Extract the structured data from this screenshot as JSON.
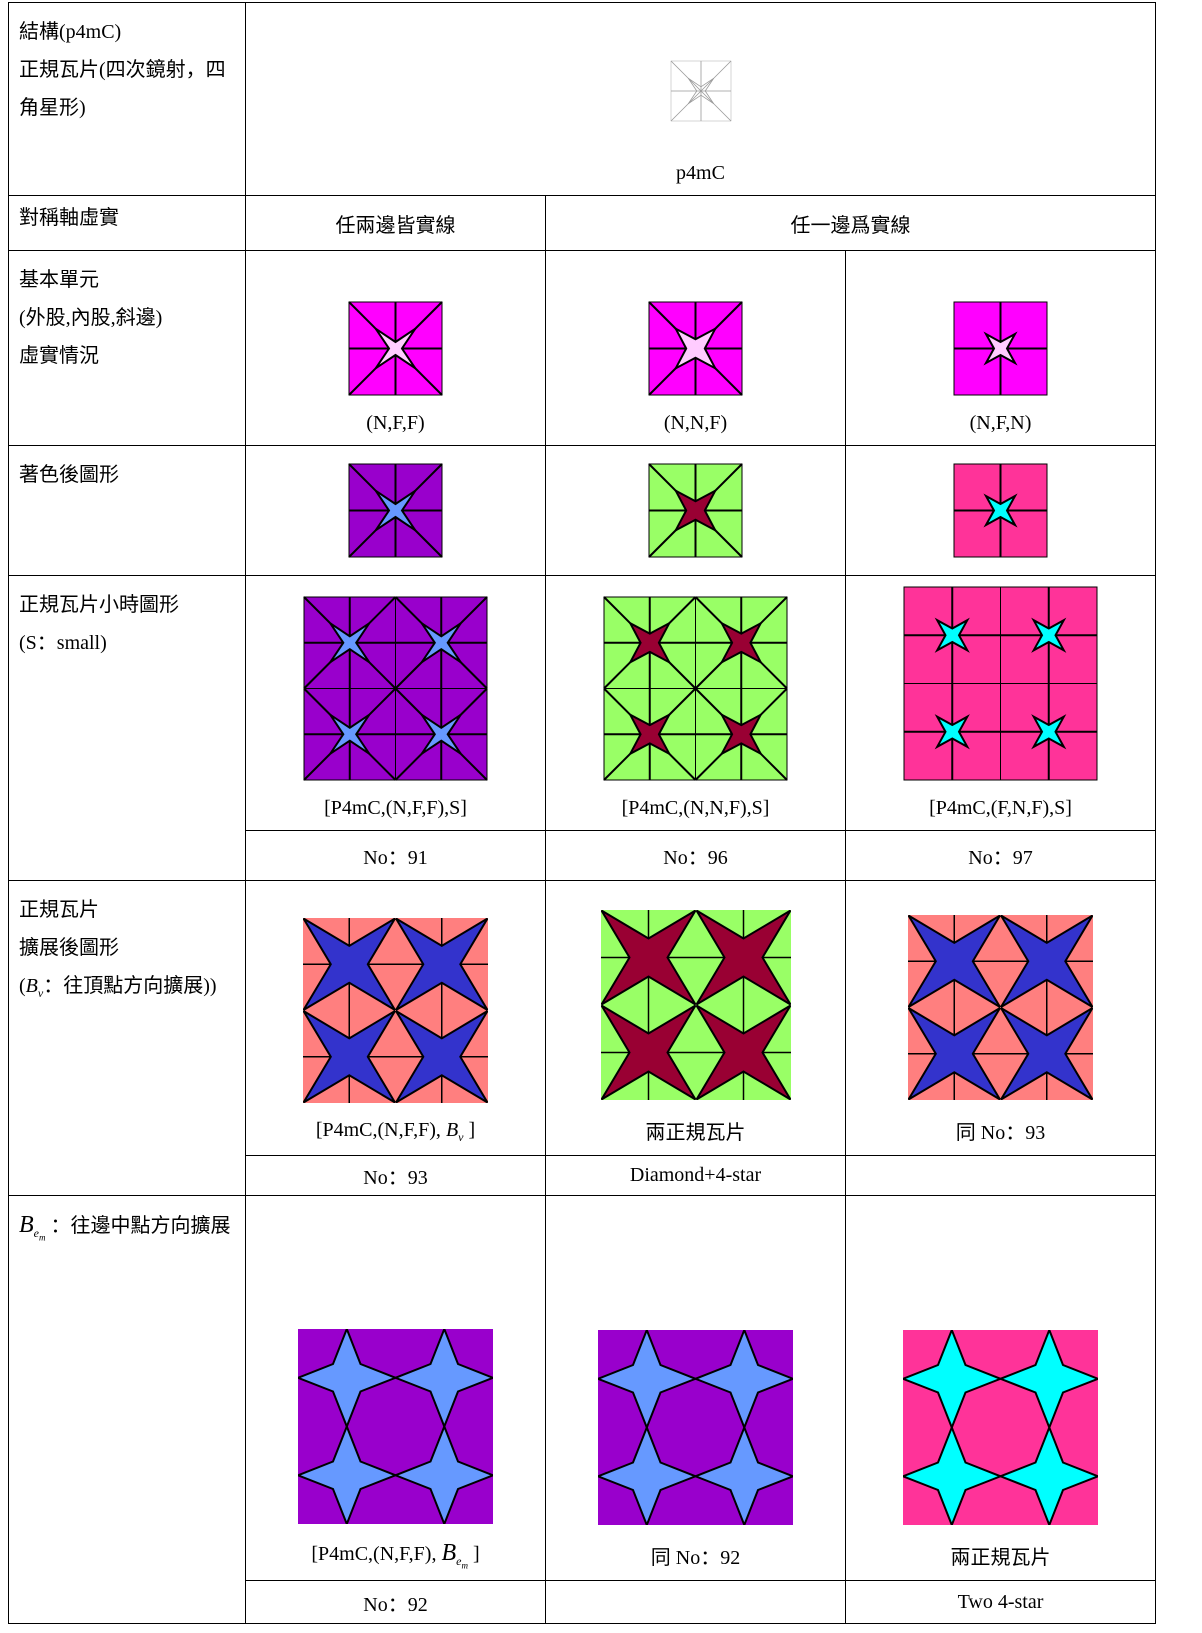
{
  "header": {
    "label_lines": [
      "結構(p4mC)",
      "正規瓦片(四次鏡射，四角星形)"
    ],
    "caption": "p4mC"
  },
  "symmetry": {
    "label": "對稱軸虛實",
    "both": "任兩邊皆實線",
    "either": "任一邊爲實線"
  },
  "basic": {
    "label_lines": [
      "基本單元",
      "(外股,內股,斜邊)",
      "虛實情況"
    ],
    "captions": [
      "(N,F,F)",
      "(N,N,F)",
      "(N,F,N)"
    ]
  },
  "colored": {
    "label": "著色後圖形"
  },
  "small": {
    "label_lines": [
      "正規瓦片小時圖形",
      "(S：small)"
    ],
    "captions": [
      "[P4mC,(N,F,F),S]",
      "[P4mC,(N,N,F),S]",
      "[P4mC,(F,N,F),S]"
    ],
    "numbers": [
      "No：91",
      "No：96",
      "No：97"
    ]
  },
  "vertex": {
    "label_lines": [
      "正規瓦片",
      "擴展後圖形"
    ],
    "label_symbol": {
      "open": "(",
      "symbol": "B",
      "sub": "v",
      "text": "：往頂點方向擴展))"
    },
    "caption_1": {
      "text": "[P4mC,(N,F,F),",
      "symbol": "B",
      "sub": "v",
      "close": "]"
    },
    "caption_2": "兩正規瓦片",
    "caption_3": "同 No：93",
    "number_1": "No：93",
    "number_2": "Diamond+4-star"
  },
  "edge": {
    "label_symbol": {
      "symbol": "B",
      "sub": "e",
      "subsub": "m",
      "text": "：往邊中點方向擴展"
    },
    "caption_1": {
      "text": "[P4mC,(N,F,F),",
      "symbol": "B",
      "sub": "e",
      "subsub": "m",
      "close": "]"
    },
    "caption_2": "同 No：92",
    "caption_3": "兩正規瓦片",
    "number_1": "No：92",
    "number_3": "Two 4-star"
  }
}
